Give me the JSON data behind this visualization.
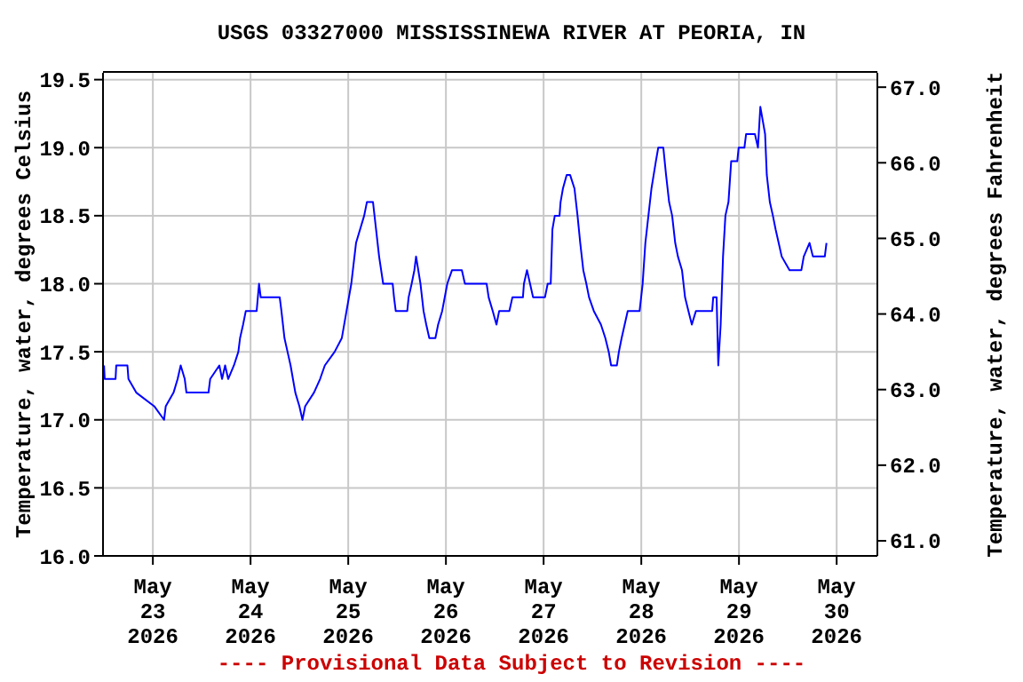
{
  "chart_data": {
    "type": "line",
    "title": "USGS 03327000 MISSISSINEWA RIVER AT PEORIA, IN",
    "ylabel": "Temperature, water, degrees Celsius",
    "y2label": "Temperature, water, degrees Fahrenheit",
    "annotations": [
      "---- Provisional Data Subject to Revision ----"
    ],
    "x": [
      "2026-05-22T12:00",
      "2026-05-22T12:10",
      "2026-05-22T14:50",
      "2026-05-22T15:00",
      "2026-05-22T17:45",
      "2026-05-22T18:00",
      "2026-05-22T19:55",
      "2026-05-23T00:20",
      "2026-05-23T02:45",
      "2026-05-23T03:10",
      "2026-05-23T05:05",
      "2026-05-23T06:05",
      "2026-05-23T06:50",
      "2026-05-23T07:50",
      "2026-05-23T08:15",
      "2026-05-23T13:40",
      "2026-05-23T14:05",
      "2026-05-23T16:20",
      "2026-05-23T17:00",
      "2026-05-23T17:45",
      "2026-05-23T18:30",
      "2026-05-23T19:55",
      "2026-05-23T21:00",
      "2026-05-23T21:25",
      "2026-05-23T22:10",
      "2026-05-23T22:50",
      "2026-05-24T01:30",
      "2026-05-24T02:05",
      "2026-05-24T02:30",
      "2026-05-24T07:10",
      "2026-05-24T07:35",
      "2026-05-24T08:20",
      "2026-05-24T09:05",
      "2026-05-24T09:50",
      "2026-05-24T11:00",
      "2026-05-24T12:00",
      "2026-05-24T12:45",
      "2026-05-24T13:25",
      "2026-05-24T15:35",
      "2026-05-24T17:05",
      "2026-05-24T18:15",
      "2026-05-24T20:40",
      "2026-05-24T22:25",
      "2026-05-24T23:35",
      "2026-05-25T00:45",
      "2026-05-25T01:55",
      "2026-05-25T03:55",
      "2026-05-25T04:35",
      "2026-05-25T06:05",
      "2026-05-25T06:50",
      "2026-05-25T07:35",
      "2026-05-25T08:35",
      "2026-05-25T10:55",
      "2026-05-25T11:15",
      "2026-05-25T11:40",
      "2026-05-25T14:30",
      "2026-05-25T14:50",
      "2026-05-25T15:35",
      "2026-05-25T16:15",
      "2026-05-25T16:40",
      "2026-05-25T17:45",
      "2026-05-25T18:30",
      "2026-05-25T19:10",
      "2026-05-25T19:55",
      "2026-05-25T21:25",
      "2026-05-25T22:05",
      "2026-05-25T23:05",
      "2026-05-26T00:20",
      "2026-05-26T01:30",
      "2026-05-26T03:55",
      "2026-05-26T04:40",
      "2026-05-26T10:00",
      "2026-05-26T10:30",
      "2026-05-26T11:30",
      "2026-05-26T12:25",
      "2026-05-26T13:05",
      "2026-05-26T15:35",
      "2026-05-26T16:20",
      "2026-05-26T18:55",
      "2026-05-26T19:10",
      "2026-05-26T19:55",
      "2026-05-26T20:40",
      "2026-05-26T21:25",
      "2026-05-27T00:20",
      "2026-05-27T01:00",
      "2026-05-27T01:45",
      "2026-05-27T02:10",
      "2026-05-27T02:45",
      "2026-05-27T03:55",
      "2026-05-27T04:10",
      "2026-05-27T04:45",
      "2026-05-27T05:40",
      "2026-05-27T06:30",
      "2026-05-27T07:35",
      "2026-05-27T08:20",
      "2026-05-27T09:00",
      "2026-05-27T09:45",
      "2026-05-27T10:30",
      "2026-05-27T11:10",
      "2026-05-27T12:20",
      "2026-05-27T14:05",
      "2026-05-27T15:10",
      "2026-05-27T16:00",
      "2026-05-27T16:35",
      "2026-05-27T18:00",
      "2026-05-27T18:30",
      "2026-05-27T19:10",
      "2026-05-27T19:55",
      "2026-05-27T20:40",
      "2026-05-27T23:35",
      "2026-05-28T00:20",
      "2026-05-28T01:00",
      "2026-05-28T01:45",
      "2026-05-28T02:30",
      "2026-05-28T03:35",
      "2026-05-28T04:10",
      "2026-05-28T05:25",
      "2026-05-28T06:05",
      "2026-05-28T06:50",
      "2026-05-28T07:35",
      "2026-05-28T08:20",
      "2026-05-28T09:00",
      "2026-05-28T10:00",
      "2026-05-28T10:45",
      "2026-05-28T11:35",
      "2026-05-28T12:25",
      "2026-05-28T13:25",
      "2026-05-28T17:25",
      "2026-05-28T17:40",
      "2026-05-28T18:30",
      "2026-05-28T18:55",
      "2026-05-28T19:30",
      "2026-05-28T20:05",
      "2026-05-28T20:40",
      "2026-05-28T21:25",
      "2026-05-28T22:05",
      "2026-05-28T23:35",
      "2026-05-28T23:55",
      "2026-05-29T01:20",
      "2026-05-29T01:45",
      "2026-05-29T03:55",
      "2026-05-29T04:40",
      "2026-05-29T05:15",
      "2026-05-29T05:50",
      "2026-05-29T06:25",
      "2026-05-29T06:50",
      "2026-05-29T07:35",
      "2026-05-29T08:20",
      "2026-05-29T09:00",
      "2026-05-29T09:45",
      "2026-05-29T10:30",
      "2026-05-29T12:25",
      "2026-05-29T15:20",
      "2026-05-29T15:55",
      "2026-05-29T17:20",
      "2026-05-29T18:10",
      "2026-05-29T21:05",
      "2026-05-29T21:30"
    ],
    "series": [
      {
        "color": "#0000ff",
        "values": [
          17.4,
          17.3,
          17.3,
          17.4,
          17.4,
          17.3,
          17.2,
          17.1,
          17.0,
          17.1,
          17.2,
          17.3,
          17.4,
          17.3,
          17.2,
          17.2,
          17.3,
          17.4,
          17.3,
          17.4,
          17.3,
          17.4,
          17.5,
          17.6,
          17.7,
          17.8,
          17.8,
          18.0,
          17.9,
          17.9,
          17.8,
          17.6,
          17.5,
          17.4,
          17.2,
          17.1,
          17.0,
          17.1,
          17.2,
          17.3,
          17.4,
          17.5,
          17.6,
          17.8,
          18.0,
          18.3,
          18.5,
          18.6,
          18.6,
          18.4,
          18.2,
          18.0,
          18.0,
          17.9,
          17.8,
          17.8,
          17.9,
          18.0,
          18.1,
          18.2,
          18.0,
          17.8,
          17.7,
          17.6,
          17.6,
          17.7,
          17.8,
          18.0,
          18.1,
          18.1,
          18.0,
          18.0,
          17.9,
          17.8,
          17.7,
          17.8,
          17.8,
          17.9,
          17.9,
          18.0,
          18.1,
          18.0,
          17.9,
          17.9,
          18.0,
          18.0,
          18.4,
          18.5,
          18.5,
          18.6,
          18.7,
          18.8,
          18.8,
          18.7,
          18.5,
          18.3,
          18.1,
          18.0,
          17.9,
          17.8,
          17.7,
          17.6,
          17.5,
          17.4,
          17.4,
          17.5,
          17.6,
          17.7,
          17.8,
          17.8,
          18.0,
          18.3,
          18.5,
          18.7,
          18.9,
          19.0,
          19.0,
          18.8,
          18.6,
          18.5,
          18.3,
          18.2,
          18.1,
          17.9,
          17.8,
          17.7,
          17.8,
          17.8,
          17.9,
          17.9,
          17.4,
          17.7,
          18.2,
          18.5,
          18.6,
          18.9,
          18.9,
          19.0,
          19.0,
          19.1,
          19.1,
          19.0,
          19.3,
          19.2,
          19.1,
          18.8,
          18.6,
          18.5,
          18.4,
          18.3,
          18.2,
          18.1,
          18.1,
          18.2,
          18.3,
          18.2,
          18.2,
          18.3
        ]
      }
    ],
    "xlim": [
      "2026-05-22T11:45",
      "2026-05-30T10:00"
    ],
    "xticks": [
      {
        "value": "2026-05-23",
        "label": "May\n23\n2026"
      },
      {
        "value": "2026-05-24",
        "label": "May\n24\n2026"
      },
      {
        "value": "2026-05-25",
        "label": "May\n25\n2026"
      },
      {
        "value": "2026-05-26",
        "label": "May\n26\n2026"
      },
      {
        "value": "2026-05-27",
        "label": "May\n27\n2026"
      },
      {
        "value": "2026-05-28",
        "label": "May\n28\n2026"
      },
      {
        "value": "2026-05-29",
        "label": "May\n29\n2026"
      },
      {
        "value": "2026-05-30",
        "label": "May\n30\n2026"
      }
    ],
    "ylim": [
      16.0,
      19.55
    ],
    "yticks": [
      {
        "value": 16,
        "label": "16.0"
      },
      {
        "value": 16.5,
        "label": "16.5"
      },
      {
        "value": 17,
        "label": "17.0"
      },
      {
        "value": 17.5,
        "label": "17.5"
      },
      {
        "value": 18,
        "label": "18.0"
      },
      {
        "value": 18.5,
        "label": "18.5"
      },
      {
        "value": 19,
        "label": "19.0"
      },
      {
        "value": 19.5,
        "label": "19.5"
      }
    ],
    "y2lim": [
      60.8,
      67.19
    ],
    "y2ticks": [
      {
        "value": 61,
        "label": "61.0"
      },
      {
        "value": 62,
        "label": "62.0"
      },
      {
        "value": 63,
        "label": "63.0"
      },
      {
        "value": 64,
        "label": "64.0"
      },
      {
        "value": 65,
        "label": "65.0"
      },
      {
        "value": 66,
        "label": "66.0"
      },
      {
        "value": 67,
        "label": "67.0"
      }
    ],
    "grid": true,
    "marker": "none",
    "line_style": "solid"
  }
}
